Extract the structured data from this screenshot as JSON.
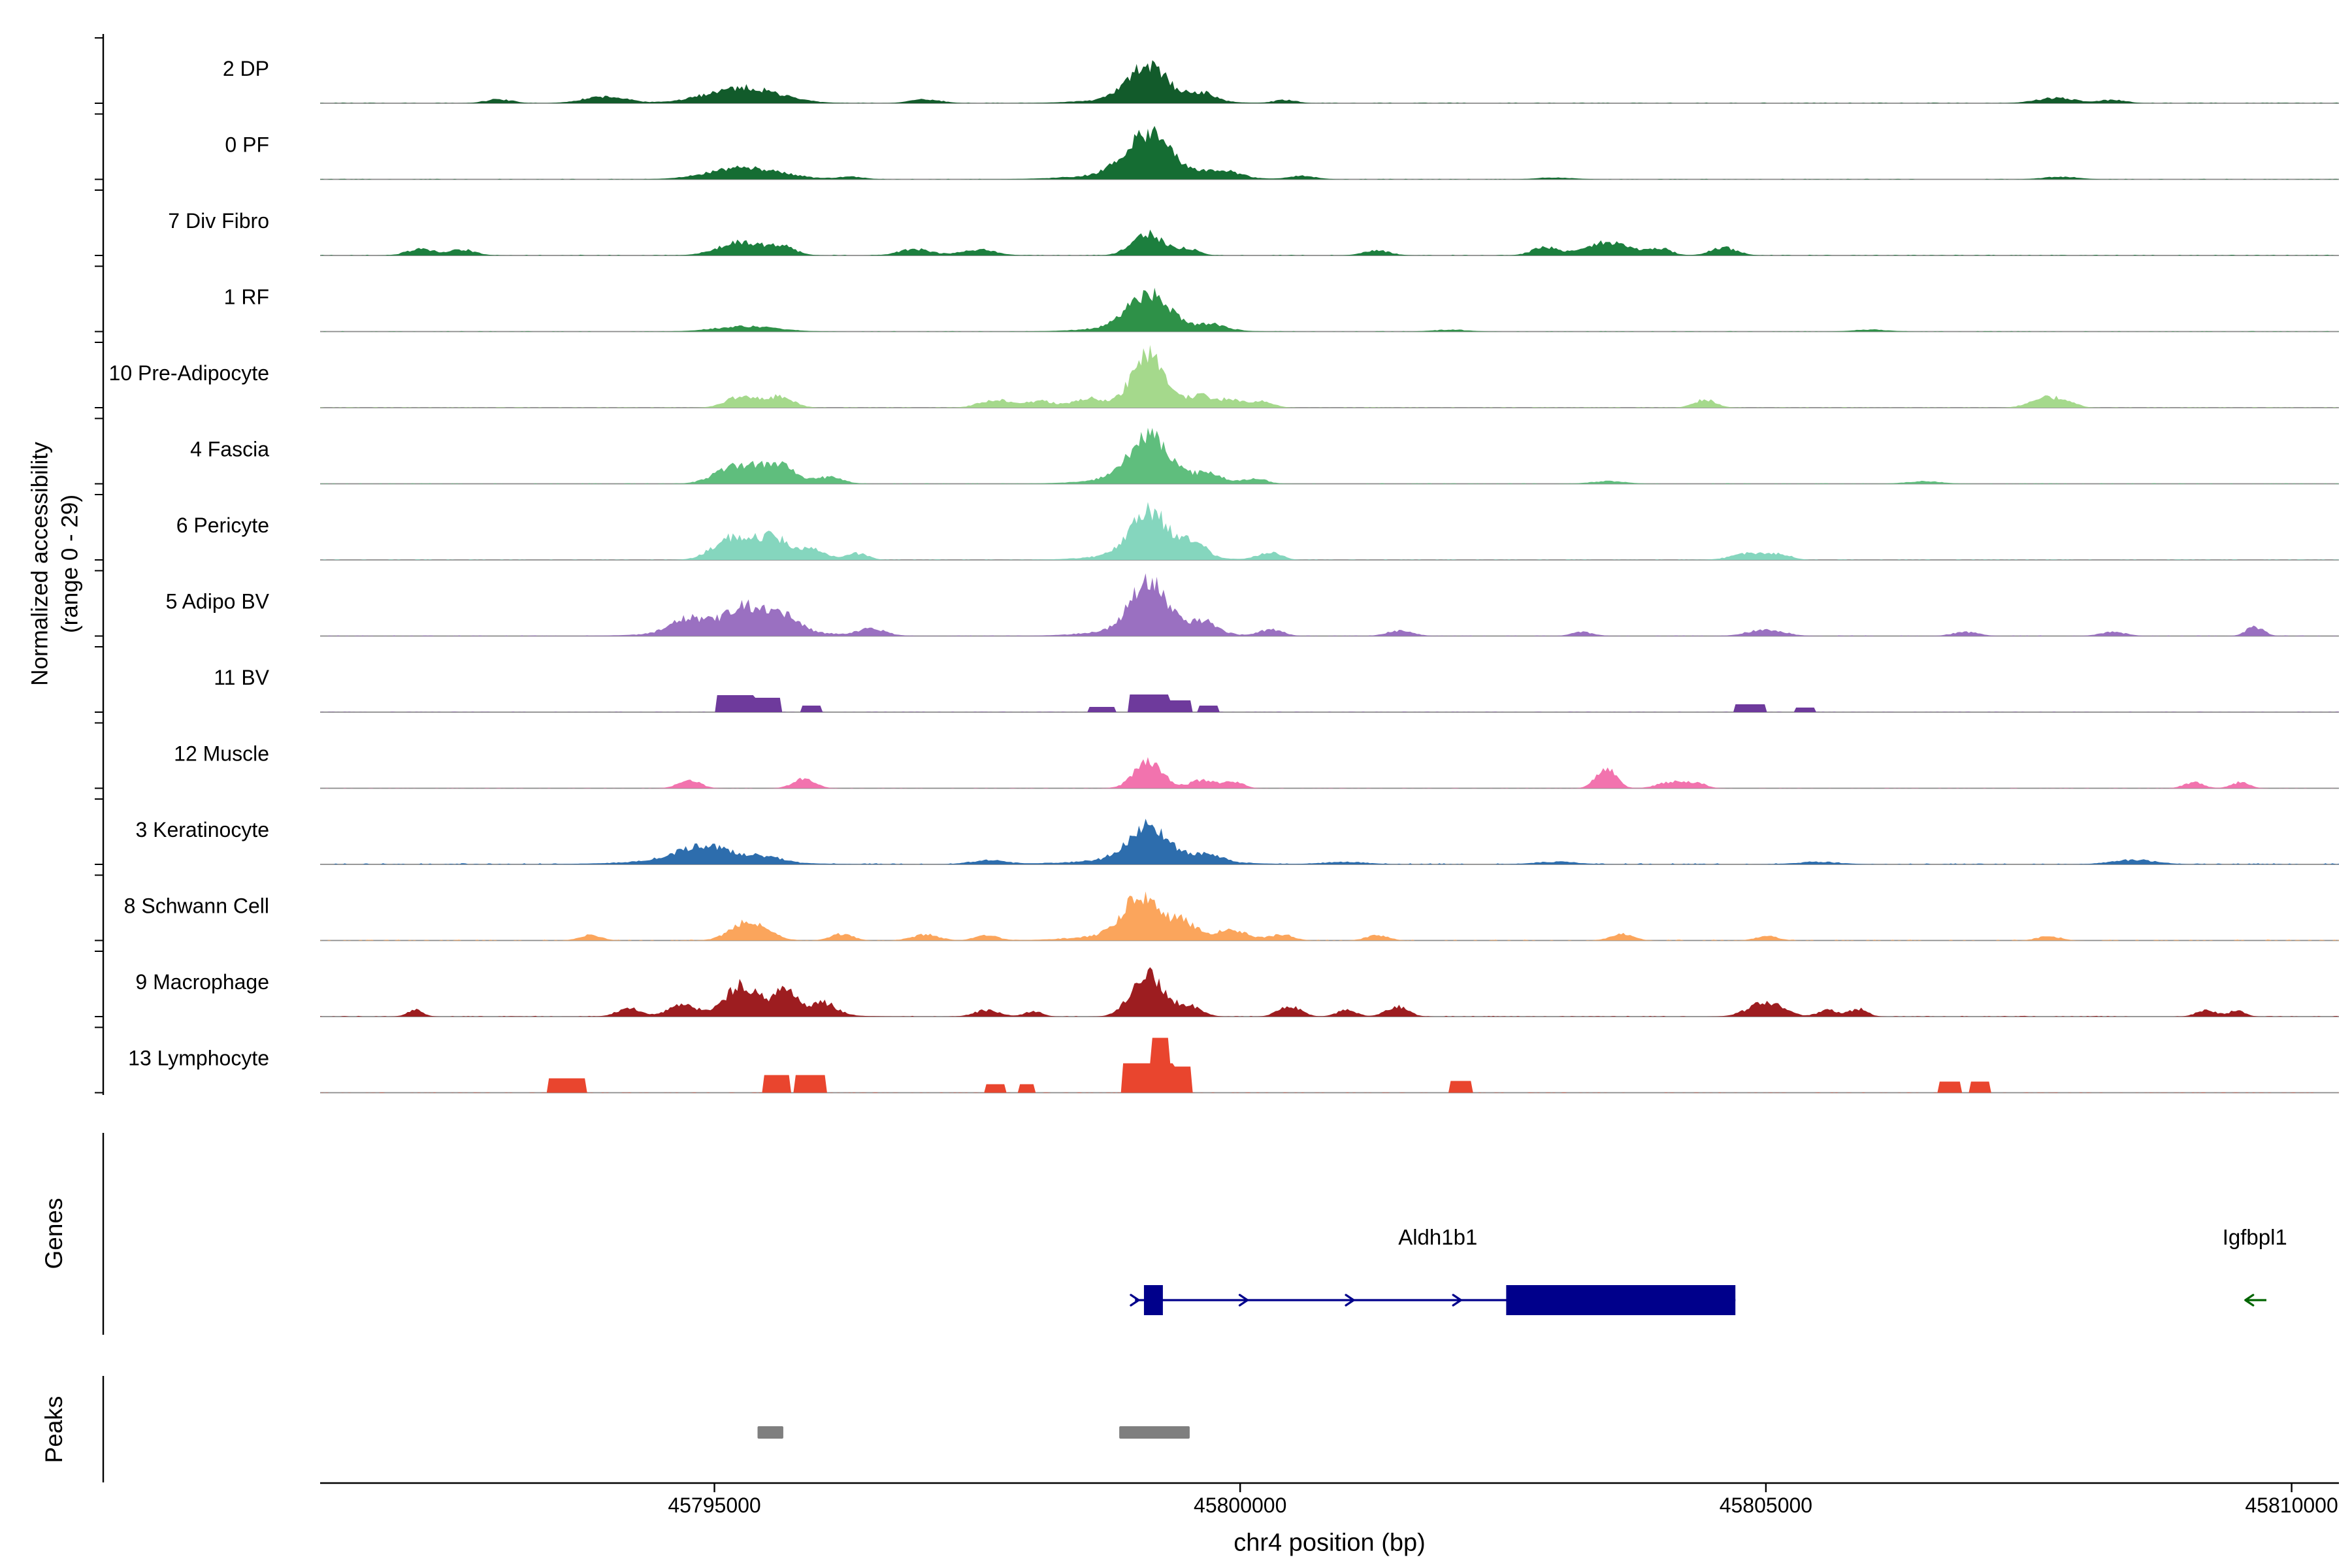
{
  "figure": {
    "y_axis_label_line1": "Normalized accessibility",
    "y_axis_label_line2": "(range 0 - 29)",
    "genes_label": "Genes",
    "peaks_label": "Peaks"
  },
  "chart_data": {
    "type": "area",
    "description_type": "genome-browser accessibility tracks",
    "x_axis": {
      "title": "chr4 position (bp)",
      "range_bp": [
        45791250,
        45810450
      ],
      "ticks": [
        45795000,
        45800000,
        45805000,
        45810000
      ],
      "tick_labels": [
        "45795000",
        "45800000",
        "45805000",
        "45810000"
      ]
    },
    "y_axis": {
      "label": "Normalized accessibility",
      "range_label": "(range 0 - 29)",
      "range": [
        0,
        29
      ]
    },
    "tracks": [
      {
        "label": "2 DP",
        "color": "#125B2B",
        "block": false,
        "noise": 0.01,
        "peaks": [
          [
            45792950,
            300,
            0.06
          ],
          [
            45793960,
            500,
            0.1
          ],
          [
            45795270,
            800,
            0.24
          ],
          [
            45797010,
            350,
            0.06
          ],
          [
            45799120,
            420,
            0.5
          ],
          [
            45799120,
            1100,
            0.08
          ],
          [
            45799640,
            280,
            0.12
          ],
          [
            45800430,
            250,
            0.05
          ],
          [
            45807760,
            450,
            0.08
          ],
          [
            45808300,
            300,
            0.05
          ]
        ]
      },
      {
        "label": "0 PF",
        "color": "#156D33",
        "block": false,
        "noise": 0.008,
        "peaks": [
          [
            45795300,
            800,
            0.18
          ],
          [
            45796300,
            300,
            0.04
          ],
          [
            45799130,
            500,
            0.62
          ],
          [
            45799130,
            1300,
            0.09
          ],
          [
            45799850,
            350,
            0.1
          ],
          [
            45800600,
            300,
            0.05
          ],
          [
            45803000,
            400,
            0.03
          ],
          [
            45807800,
            400,
            0.04
          ]
        ]
      },
      {
        "label": "7 Div Fibro",
        "color": "#1C7F3E",
        "block": false,
        "noise": 0.012,
        "peaks": [
          [
            45792200,
            300,
            0.1
          ],
          [
            45792600,
            300,
            0.09
          ],
          [
            45795250,
            500,
            0.2
          ],
          [
            45795650,
            300,
            0.12
          ],
          [
            45796900,
            350,
            0.1
          ],
          [
            45797500,
            400,
            0.09
          ],
          [
            45799120,
            350,
            0.33
          ],
          [
            45799500,
            250,
            0.1
          ],
          [
            45801300,
            300,
            0.08
          ],
          [
            45802900,
            300,
            0.12
          ],
          [
            45803500,
            500,
            0.2
          ],
          [
            45804000,
            250,
            0.1
          ],
          [
            45804600,
            300,
            0.12
          ]
        ]
      },
      {
        "label": "1 RF",
        "color": "#2E9148",
        "block": false,
        "noise": 0.008,
        "peaks": [
          [
            45795300,
            700,
            0.08
          ],
          [
            45799130,
            450,
            0.5
          ],
          [
            45799130,
            1100,
            0.08
          ],
          [
            45799750,
            300,
            0.08
          ],
          [
            45802000,
            400,
            0.03
          ],
          [
            45806000,
            400,
            0.03
          ]
        ]
      },
      {
        "label": "10 Pre-Adipocyte",
        "color": "#A5D98C",
        "block": false,
        "noise": 0.01,
        "peaks": [
          [
            45795270,
            350,
            0.18
          ],
          [
            45795630,
            300,
            0.16
          ],
          [
            45797670,
            350,
            0.12
          ],
          [
            45798100,
            300,
            0.1
          ],
          [
            45798540,
            300,
            0.12
          ],
          [
            45799130,
            350,
            0.73
          ],
          [
            45799130,
            900,
            0.1
          ],
          [
            45799630,
            250,
            0.14
          ],
          [
            45799920,
            250,
            0.12
          ],
          [
            45800210,
            250,
            0.1
          ],
          [
            45804420,
            250,
            0.12
          ],
          [
            45807620,
            300,
            0.14
          ],
          [
            45807840,
            250,
            0.1
          ]
        ]
      },
      {
        "label": "4 Fascia",
        "color": "#5FBE7D",
        "block": false,
        "noise": 0.01,
        "peaks": [
          [
            45795200,
            450,
            0.26
          ],
          [
            45795600,
            400,
            0.28
          ],
          [
            45796100,
            300,
            0.1
          ],
          [
            45799130,
            450,
            0.62
          ],
          [
            45799130,
            1100,
            0.09
          ],
          [
            45799700,
            300,
            0.12
          ],
          [
            45800150,
            250,
            0.07
          ],
          [
            45803500,
            400,
            0.04
          ],
          [
            45806500,
            400,
            0.04
          ]
        ]
      },
      {
        "label": "6 Pericyte",
        "color": "#85D6BE",
        "block": false,
        "noise": 0.01,
        "peaks": [
          [
            45795150,
            400,
            0.32
          ],
          [
            45795550,
            400,
            0.34
          ],
          [
            45795950,
            300,
            0.14
          ],
          [
            45796350,
            250,
            0.1
          ],
          [
            45799130,
            400,
            0.66
          ],
          [
            45799130,
            1000,
            0.1
          ],
          [
            45799550,
            280,
            0.22
          ],
          [
            45800280,
            250,
            0.12
          ],
          [
            45804850,
            400,
            0.1
          ],
          [
            45805150,
            250,
            0.07
          ]
        ]
      },
      {
        "label": "5 Adipo BV",
        "color": "#9A70C1",
        "block": false,
        "noise": 0.012,
        "peaks": [
          [
            45794760,
            400,
            0.22
          ],
          [
            45795270,
            400,
            0.38
          ],
          [
            45795650,
            350,
            0.26
          ],
          [
            45795300,
            1500,
            0.08
          ],
          [
            45796500,
            300,
            0.1
          ],
          [
            45799130,
            400,
            0.73
          ],
          [
            45799130,
            1100,
            0.1
          ],
          [
            45799650,
            300,
            0.18
          ],
          [
            45800300,
            250,
            0.1
          ],
          [
            45801520,
            300,
            0.08
          ],
          [
            45803260,
            250,
            0.06
          ],
          [
            45805000,
            400,
            0.1
          ],
          [
            45806900,
            300,
            0.06
          ],
          [
            45808300,
            300,
            0.06
          ],
          [
            45809650,
            200,
            0.14
          ]
        ]
      },
      {
        "label": "11 BV",
        "color": "#6E3A9C",
        "block": true,
        "noise": 0.006,
        "peaks": [
          [
            45795200,
            350,
            0.26
          ],
          [
            45795500,
            250,
            0.22
          ],
          [
            45795920,
            180,
            0.1
          ],
          [
            45798680,
            250,
            0.08
          ],
          [
            45799130,
            380,
            0.27
          ],
          [
            45799420,
            250,
            0.18
          ],
          [
            45799700,
            180,
            0.1
          ],
          [
            45804860,
            300,
            0.12
          ],
          [
            45805370,
            200,
            0.07
          ]
        ]
      },
      {
        "label": "12 Muscle",
        "color": "#F273AE",
        "block": false,
        "noise": 0.006,
        "peaks": [
          [
            45794760,
            250,
            0.12
          ],
          [
            45795850,
            250,
            0.14
          ],
          [
            45799130,
            320,
            0.4
          ],
          [
            45799650,
            280,
            0.13
          ],
          [
            45799950,
            200,
            0.1
          ],
          [
            45803480,
            220,
            0.3
          ],
          [
            45804100,
            300,
            0.1
          ],
          [
            45804350,
            200,
            0.08
          ],
          [
            45809070,
            220,
            0.09
          ],
          [
            45809510,
            200,
            0.09
          ]
        ]
      },
      {
        "label": "3 Keratinocyte",
        "color": "#2D6DAD",
        "block": false,
        "noise": 0.02,
        "peaks": [
          [
            45794900,
            600,
            0.22
          ],
          [
            45794900,
            1500,
            0.06
          ],
          [
            45795500,
            350,
            0.08
          ],
          [
            45797600,
            400,
            0.06
          ],
          [
            45799130,
            450,
            0.5
          ],
          [
            45799130,
            1400,
            0.08
          ],
          [
            45799700,
            300,
            0.1
          ],
          [
            45801000,
            500,
            0.04
          ],
          [
            45803000,
            500,
            0.04
          ],
          [
            45805500,
            500,
            0.04
          ],
          [
            45808500,
            500,
            0.07
          ]
        ]
      },
      {
        "label": "8 Schwann Cell",
        "color": "#FBA55C",
        "block": false,
        "noise": 0.015,
        "peaks": [
          [
            45793820,
            250,
            0.08
          ],
          [
            45795340,
            400,
            0.3
          ],
          [
            45796210,
            250,
            0.1
          ],
          [
            45797010,
            300,
            0.09
          ],
          [
            45797590,
            250,
            0.08
          ],
          [
            45799050,
            400,
            0.55
          ],
          [
            45799100,
            1200,
            0.1
          ],
          [
            45799450,
            280,
            0.22
          ],
          [
            45799920,
            350,
            0.13
          ],
          [
            45800400,
            250,
            0.09
          ],
          [
            45801300,
            250,
            0.08
          ],
          [
            45803630,
            250,
            0.1
          ],
          [
            45805010,
            250,
            0.07
          ],
          [
            45807690,
            250,
            0.07
          ]
        ]
      },
      {
        "label": "9 Macrophage",
        "color": "#9D1D20",
        "block": false,
        "noise": 0.012,
        "peaks": [
          [
            45792150,
            180,
            0.1
          ],
          [
            45794180,
            250,
            0.12
          ],
          [
            45794690,
            250,
            0.16
          ],
          [
            45795270,
            350,
            0.4
          ],
          [
            45795680,
            250,
            0.34
          ],
          [
            45795300,
            1300,
            0.08
          ],
          [
            45796040,
            280,
            0.18
          ],
          [
            45797590,
            280,
            0.1
          ],
          [
            45798030,
            200,
            0.08
          ],
          [
            45799120,
            350,
            0.66
          ],
          [
            45799510,
            280,
            0.16
          ],
          [
            45800470,
            250,
            0.16
          ],
          [
            45801010,
            220,
            0.1
          ],
          [
            45801490,
            250,
            0.15
          ],
          [
            45805000,
            380,
            0.22
          ],
          [
            45805590,
            220,
            0.1
          ],
          [
            45805880,
            200,
            0.12
          ],
          [
            45809190,
            220,
            0.1
          ],
          [
            45809480,
            180,
            0.09
          ]
        ]
      },
      {
        "label": "13 Lymphocyte",
        "color": "#E9452E",
        "block": true,
        "noise": 0.006,
        "peaks": [
          [
            45793600,
            350,
            0.22
          ],
          [
            45795590,
            250,
            0.27
          ],
          [
            45795920,
            300,
            0.27
          ],
          [
            45797670,
            180,
            0.13
          ],
          [
            45797970,
            150,
            0.13
          ],
          [
            45799120,
            500,
            0.45
          ],
          [
            45799240,
            160,
            0.84
          ],
          [
            45799430,
            200,
            0.4
          ],
          [
            45802100,
            200,
            0.18
          ],
          [
            45806750,
            200,
            0.17
          ],
          [
            45807040,
            180,
            0.17
          ]
        ]
      }
    ],
    "genes": [
      {
        "name": "Aldh1b1",
        "strand": "+",
        "color": "#00008B",
        "line_bp": [
          45799000,
          45804710
        ],
        "exons_bp": [
          [
            45799085,
            45799265
          ],
          [
            45802530,
            45804710
          ]
        ],
        "arrow_bp": [
          45799035,
          45800070,
          45801080,
          45802100
        ],
        "label_bp": 45801880
      },
      {
        "name": "Igfbpl1",
        "strand": "-",
        "color": "#006400",
        "line_bp": [
          45809560,
          45809760
        ],
        "exons_bp": [],
        "arrow_bp": [
          45809560
        ],
        "label_bp": 45809650
      }
    ],
    "peaks": {
      "color": "#7F7F7F",
      "regions_bp": [
        [
          45795410,
          45795655
        ],
        [
          45798850,
          45799520
        ]
      ]
    }
  }
}
